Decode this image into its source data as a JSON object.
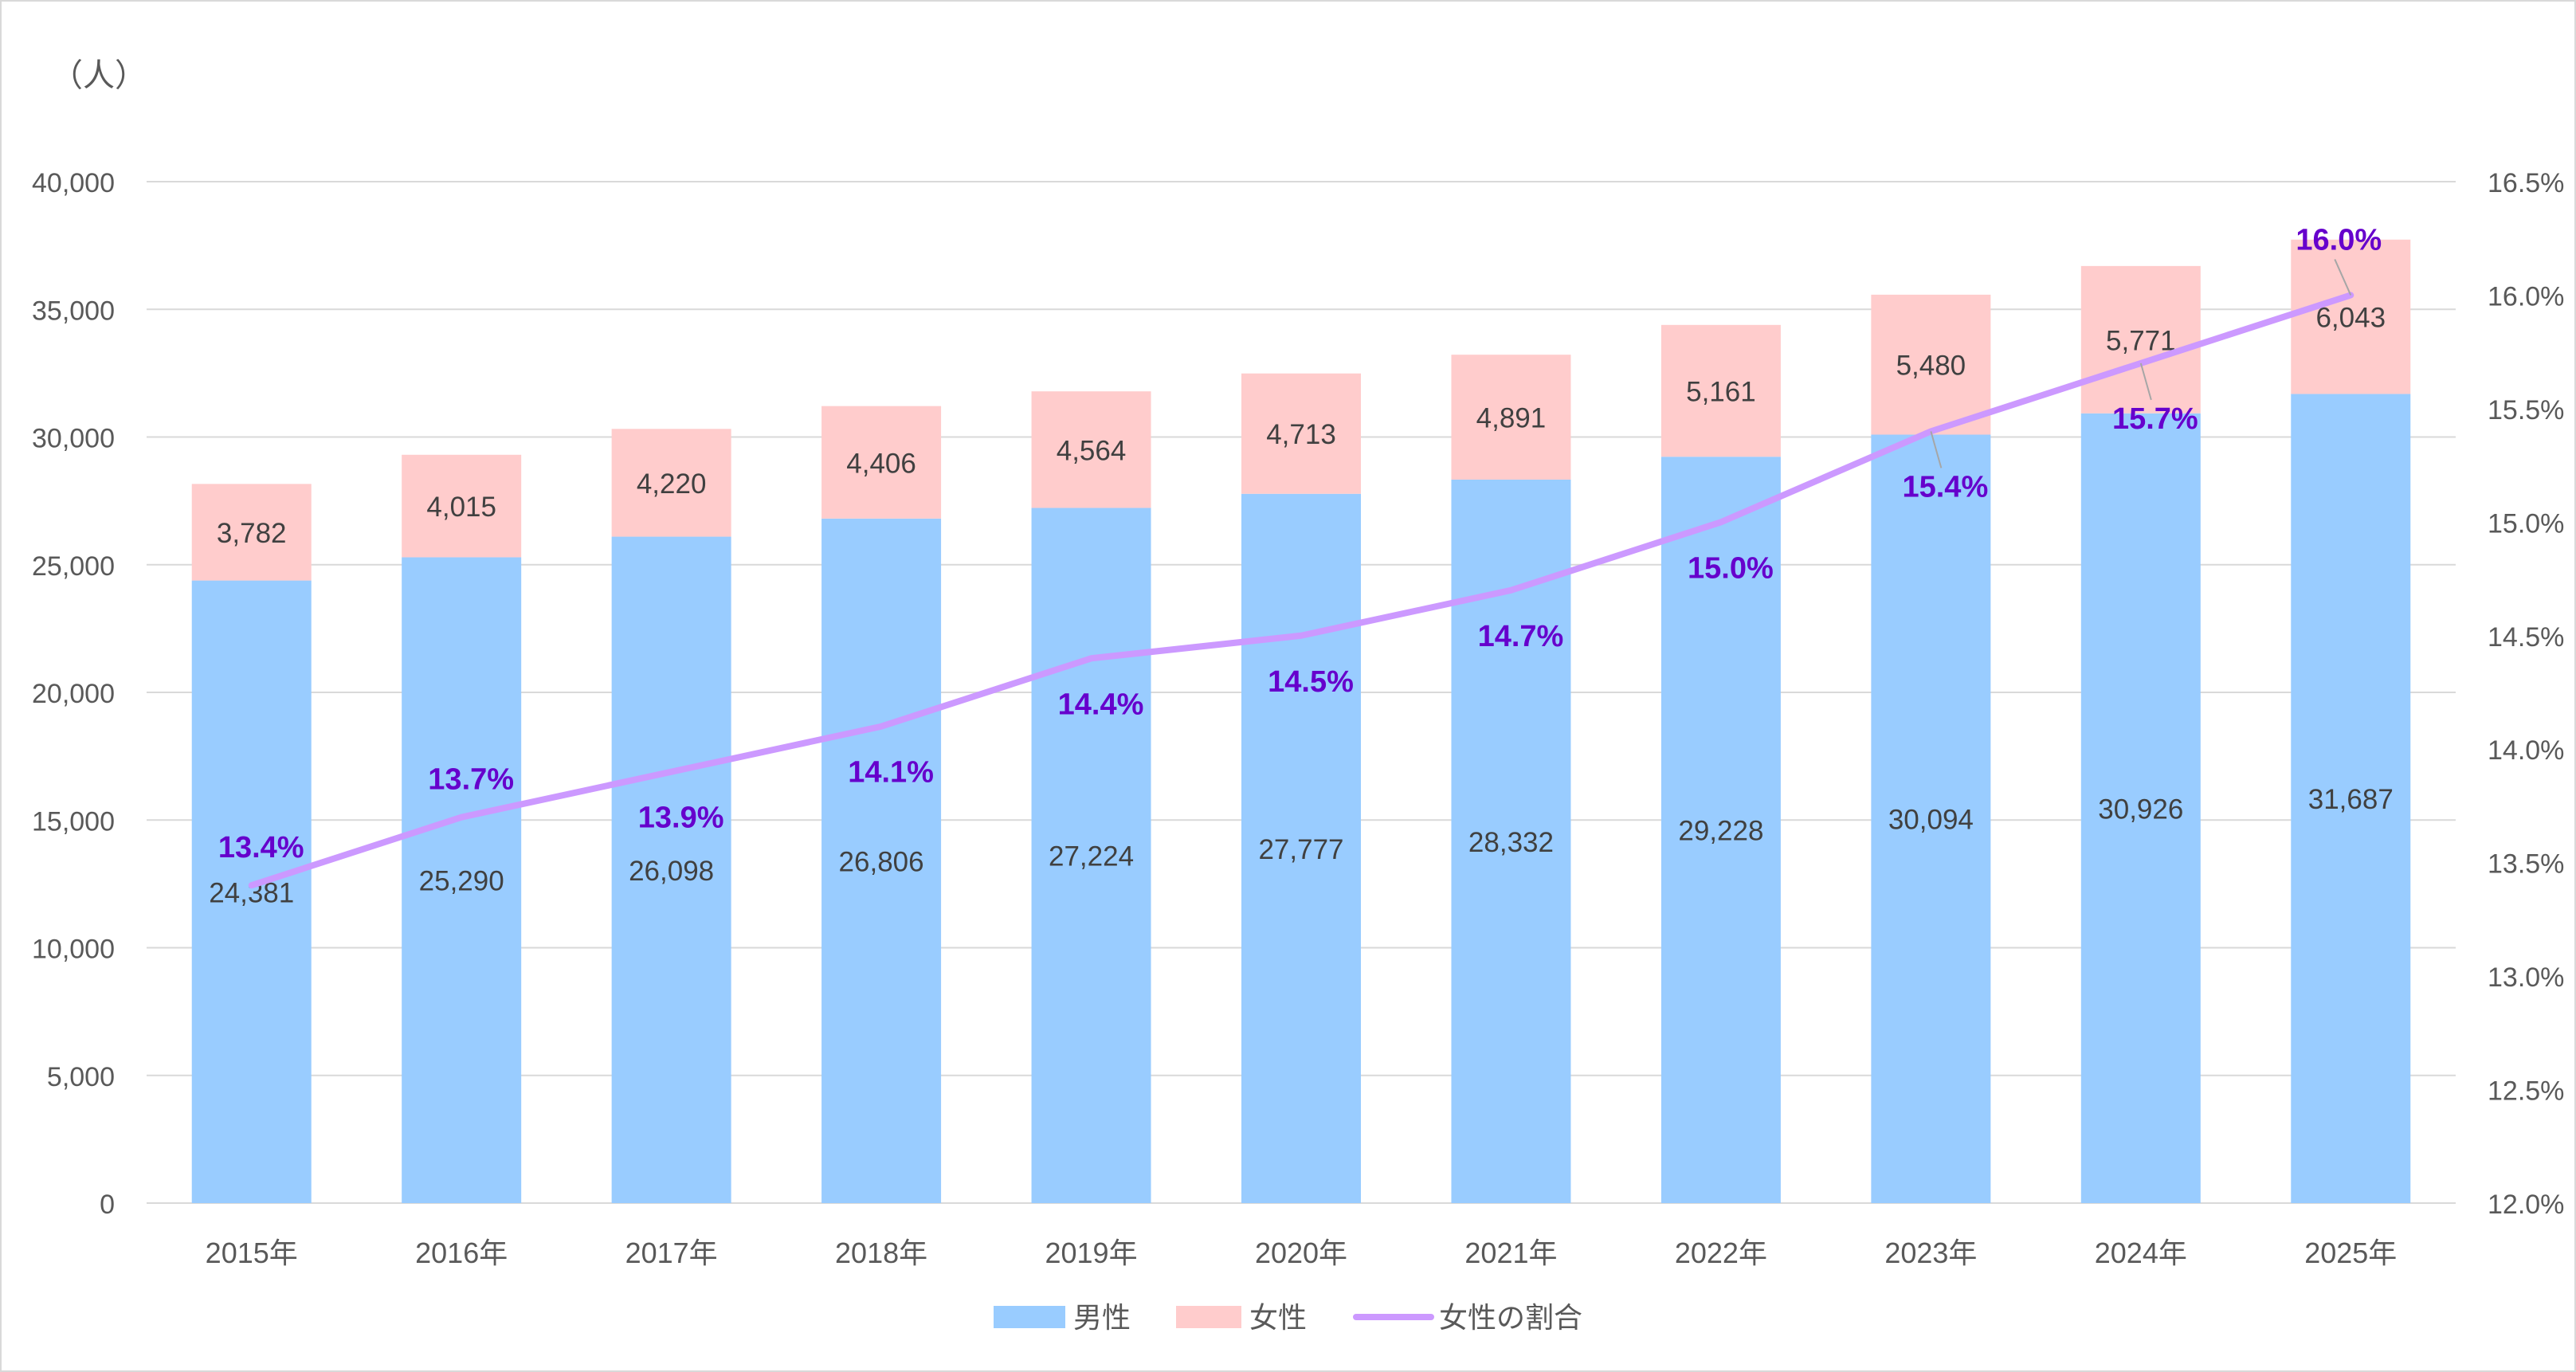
{
  "chart_data": {
    "type": "bar",
    "stacked": true,
    "unit_label": "（人）",
    "categories": [
      "2015年",
      "2016年",
      "2017年",
      "2018年",
      "2019年",
      "2020年",
      "2021年",
      "2022年",
      "2023年",
      "2024年",
      "2025年"
    ],
    "series": [
      {
        "name": "男性",
        "type": "bar",
        "axis": "left",
        "color": "#99CCFF",
        "values": [
          24381,
          25290,
          26098,
          26806,
          27224,
          27777,
          28332,
          29228,
          30094,
          30926,
          31687
        ],
        "labels": [
          "24,381",
          "25,290",
          "26,098",
          "26,806",
          "27,224",
          "27,777",
          "28,332",
          "29,228",
          "30,094",
          "30,926",
          "31,687"
        ]
      },
      {
        "name": "女性",
        "type": "bar",
        "axis": "left",
        "color": "#FFCCCC",
        "values": [
          3782,
          4015,
          4220,
          4406,
          4564,
          4713,
          4891,
          5161,
          5480,
          5771,
          6043
        ],
        "labels": [
          "3,782",
          "4,015",
          "4,220",
          "4,406",
          "4,564",
          "4,713",
          "4,891",
          "5,161",
          "5,480",
          "5,771",
          "6,043"
        ]
      },
      {
        "name": "女性の割合",
        "type": "line",
        "axis": "right",
        "color": "#CC99FF",
        "label_color": "#6600CC",
        "values": [
          13.4,
          13.7,
          13.9,
          14.1,
          14.4,
          14.5,
          14.7,
          15.0,
          15.4,
          15.7,
          16.0
        ],
        "labels": [
          "13.4%",
          "13.7%",
          "13.9%",
          "14.1%",
          "14.4%",
          "14.5%",
          "14.7%",
          "15.0%",
          "15.4%",
          "15.7%",
          "16.0%"
        ]
      }
    ],
    "y_left": {
      "min": 0,
      "max": 40000,
      "step": 5000,
      "tick_labels": [
        "0",
        "5,000",
        "10,000",
        "15,000",
        "20,000",
        "25,000",
        "30,000",
        "35,000",
        "40,000"
      ]
    },
    "y_right": {
      "min": 12.0,
      "max": 16.5,
      "step": 0.5,
      "tick_labels": [
        "12.0%",
        "12.5%",
        "13.0%",
        "13.5%",
        "14.0%",
        "14.5%",
        "15.0%",
        "15.5%",
        "16.0%",
        "16.5%"
      ]
    },
    "grid": true,
    "legend_position": "bottom",
    "colors": {
      "grid": "#d9d9d9",
      "axis_text": "#595959",
      "value_text": "#404040"
    }
  }
}
